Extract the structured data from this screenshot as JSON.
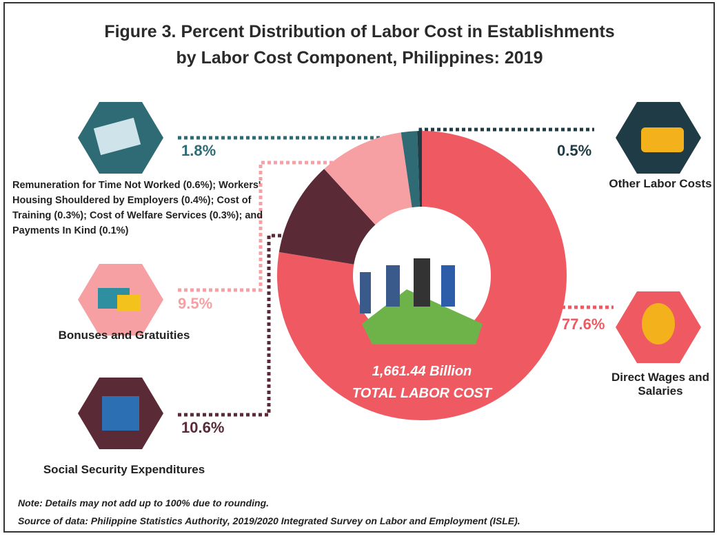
{
  "chart_data": {
    "type": "donut",
    "title": [
      "Figure 3. Percent Distribution of Labor Cost in Establishments",
      "by Labor Cost Component, Philippines: 2019"
    ],
    "categories": [
      "Direct Wages and Salaries",
      "Social Security Expenditures",
      "Bonuses and Gratuities",
      "Remuneration for Time Not Worked (0.6%); Workers' Housing Shouldered by Employers (0.4%); Cost of Training (0.3%); Cost of Welfare Services (0.3%); and Payments In Kind (0.1%)",
      "Other Labor Costs"
    ],
    "values": [
      77.6,
      10.6,
      9.5,
      1.8,
      0.5
    ],
    "value_labels": [
      "77.6%",
      "10.6%",
      "9.5%",
      "1.8%",
      "0.5%"
    ],
    "colors": [
      "#ef5a62",
      "#5b2a37",
      "#f6a0a4",
      "#2e6b74",
      "#1f3b46"
    ],
    "center_text": [
      "1,661.44 Billion",
      "TOTAL LABOR COST"
    ],
    "note": "Note:  Details may not add up to 100% due to rounding.",
    "source": "Source of data: Philippine Statistics Authority, 2019/2020 Integrated Survey on Labor and Employment (ISLE)."
  }
}
